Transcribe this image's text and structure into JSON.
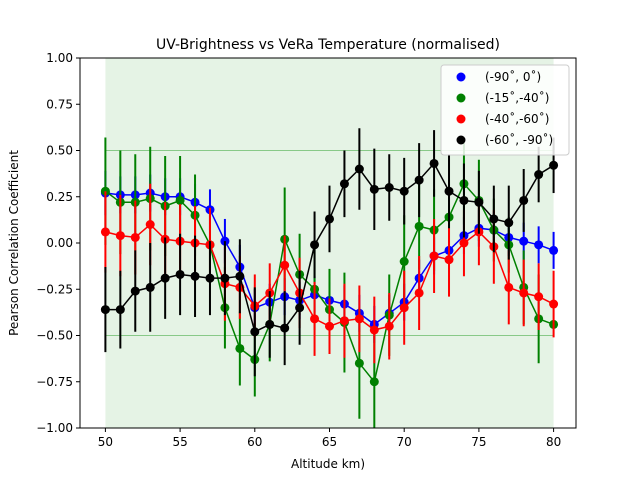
{
  "chart_data": {
    "type": "scatter",
    "title": "UV-Brightness vs VeRa Temperature (normalised)",
    "xlabel": "Altitude km)",
    "ylabel": "Pearson Correlation Coefficient",
    "xlim": [
      48.3,
      81.5
    ],
    "ylim": [
      -1.0,
      1.0
    ],
    "xticks": [
      50,
      55,
      60,
      65,
      70,
      75,
      80
    ],
    "xtick_labels": [
      "50",
      "55",
      "60",
      "65",
      "70",
      "75",
      "80"
    ],
    "yticks": [
      -1.0,
      -0.75,
      -0.5,
      -0.25,
      0.0,
      0.25,
      0.5,
      0.75,
      1.0
    ],
    "ytick_labels": [
      "−1.00",
      "−0.75",
      "−0.50",
      "−0.25",
      "0.00",
      "0.25",
      "0.50",
      "0.75",
      "1.00"
    ],
    "shaded_band": {
      "x_range": [
        50,
        80
      ],
      "y_range": [
        -1.0,
        1.0
      ],
      "color": "#2ca02c",
      "opacity": 0.12
    },
    "reference_lines": [
      {
        "y": 0.5,
        "x_range": [
          50,
          80
        ],
        "color": "#2ca02c"
      },
      {
        "y": -0.5,
        "x_range": [
          50,
          80
        ],
        "color": "#2ca02c"
      }
    ],
    "legend": {
      "position": "top-right"
    },
    "x": [
      50,
      51,
      52,
      53,
      54,
      55,
      56,
      57,
      58,
      59,
      60,
      61,
      62,
      63,
      64,
      65,
      66,
      67,
      68,
      69,
      70,
      71,
      72,
      73,
      74,
      75,
      76,
      77,
      78,
      79,
      80
    ],
    "series": [
      {
        "name": "(-90˚, 0˚)",
        "color": "#0000ff",
        "values": [
          0.27,
          0.26,
          0.26,
          0.27,
          0.25,
          0.25,
          0.22,
          0.18,
          0.01,
          -0.13,
          -0.35,
          -0.32,
          -0.29,
          -0.31,
          -0.28,
          -0.31,
          -0.33,
          -0.38,
          -0.44,
          -0.38,
          -0.32,
          -0.19,
          -0.07,
          -0.04,
          0.04,
          0.08,
          0.07,
          0.03,
          0.01,
          -0.01,
          -0.04
        ],
        "errors": [
          0.12,
          0.1,
          0.1,
          0.1,
          0.1,
          0.1,
          0.1,
          0.11,
          0.12,
          0.12,
          0.1,
          0.1,
          0.1,
          0.1,
          0.1,
          0.1,
          0.1,
          0.1,
          0.1,
          0.1,
          0.1,
          0.1,
          0.1,
          0.1,
          0.1,
          0.1,
          0.1,
          0.1,
          0.1,
          0.1,
          0.1
        ]
      },
      {
        "name": "(-15˚,-40˚)",
        "color": "#008000",
        "values": [
          0.28,
          0.22,
          0.22,
          0.24,
          0.2,
          0.23,
          0.15,
          -0.01,
          -0.35,
          -0.57,
          -0.63,
          -0.44,
          0.02,
          -0.17,
          -0.25,
          -0.36,
          -0.43,
          -0.65,
          -0.75,
          -0.39,
          -0.1,
          0.09,
          0.07,
          0.14,
          0.32,
          0.23,
          0.07,
          -0.01,
          -0.24,
          -0.41,
          -0.44
        ],
        "errors": [
          0.29,
          0.28,
          0.26,
          0.28,
          0.27,
          0.24,
          0.22,
          0.2,
          0.22,
          0.2,
          0.2,
          0.2,
          0.28,
          0.22,
          0.22,
          0.22,
          0.27,
          0.3,
          0.27,
          0.22,
          0.25,
          0.23,
          0.22,
          0.2,
          0.22,
          0.22,
          0.17,
          0.15,
          0.2,
          0.24,
          0.0
        ]
      },
      {
        "name": "(-40˚,-60˚)",
        "color": "#ff0000",
        "values": [
          0.06,
          0.04,
          0.03,
          0.1,
          0.02,
          0.01,
          0.0,
          -0.01,
          -0.22,
          -0.24,
          -0.34,
          -0.27,
          -0.12,
          -0.27,
          -0.41,
          -0.45,
          -0.42,
          -0.41,
          -0.47,
          -0.45,
          -0.35,
          -0.27,
          -0.07,
          -0.09,
          0.0,
          0.06,
          -0.02,
          -0.24,
          -0.27,
          -0.29,
          -0.33
        ],
        "errors": [
          0.22,
          0.22,
          0.2,
          0.22,
          0.2,
          0.2,
          0.2,
          0.2,
          0.2,
          0.17,
          0.17,
          0.16,
          0.16,
          0.19,
          0.2,
          0.15,
          0.2,
          0.18,
          0.18,
          0.18,
          0.2,
          0.2,
          0.2,
          0.2,
          0.18,
          0.18,
          0.2,
          0.2,
          0.18,
          0.18,
          0.18
        ]
      },
      {
        "name": "(-60˚, -90˚)",
        "color": "#000000",
        "values": [
          -0.36,
          -0.36,
          -0.26,
          -0.24,
          -0.19,
          -0.17,
          -0.18,
          -0.19,
          -0.19,
          -0.18,
          -0.48,
          -0.44,
          -0.46,
          -0.35,
          -0.01,
          0.13,
          0.32,
          0.4,
          0.29,
          0.3,
          0.28,
          0.34,
          0.43,
          0.28,
          0.23,
          0.22,
          0.13,
          0.11,
          0.23,
          0.37,
          0.42
        ],
        "errors": [
          0.23,
          0.21,
          0.22,
          0.24,
          0.22,
          0.22,
          0.22,
          0.2,
          0.2,
          0.2,
          0.24,
          0.18,
          0.2,
          0.2,
          0.18,
          0.18,
          0.18,
          0.22,
          0.22,
          0.18,
          0.18,
          0.2,
          0.18,
          0.2,
          0.2,
          0.17,
          0.18,
          0.2,
          0.17,
          0.15,
          0.15
        ]
      }
    ]
  }
}
